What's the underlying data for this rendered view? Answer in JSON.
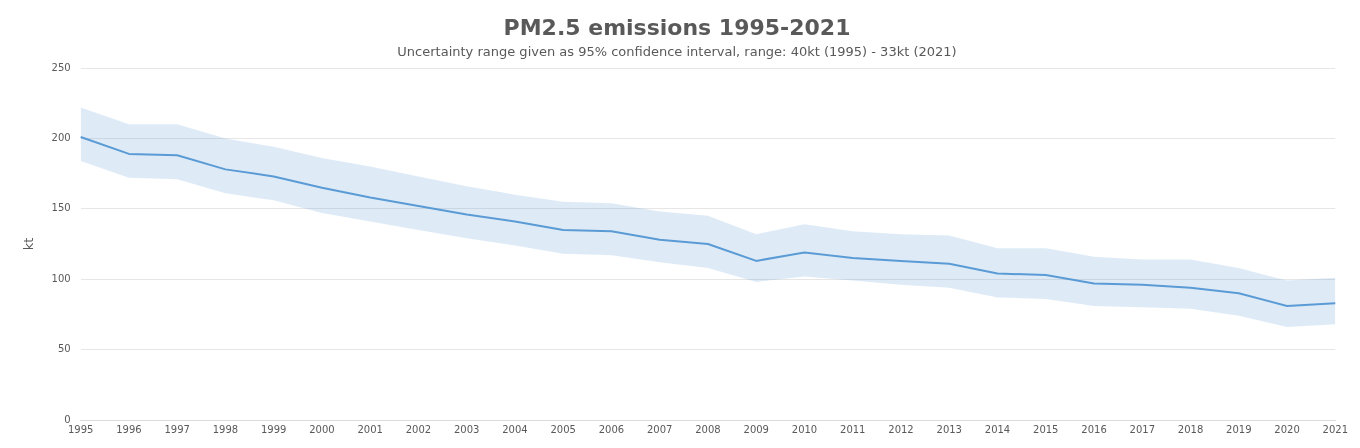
{
  "chart_data": {
    "type": "line",
    "title": "PM2.5 emissions 1995-2021",
    "subtitle": "Uncertainty range given as 95% confidence interval, range: 40kt (1995) - 33kt (2021)",
    "ylabel": "kt",
    "categories": [
      "1995",
      "1996",
      "1997",
      "1998",
      "1999",
      "2000",
      "2001",
      "2002",
      "2003",
      "2004",
      "2005",
      "2006",
      "2007",
      "2008",
      "2009",
      "2010",
      "2011",
      "2012",
      "2013",
      "2014",
      "2015",
      "2016",
      "2017",
      "2018",
      "2019",
      "2020",
      "2021"
    ],
    "series": [
      {
        "color": "#5b9bd5",
        "values": [
          201,
          189,
          188,
          178,
          173,
          165,
          158,
          152,
          146,
          141,
          135,
          134,
          128,
          125,
          113,
          119,
          115,
          113,
          111,
          104,
          103,
          97,
          96,
          94,
          90,
          81,
          83
        ],
        "upper": [
          222,
          210,
          210,
          200,
          194,
          186,
          180,
          173,
          166,
          160,
          155,
          154,
          148,
          145,
          132,
          139,
          134,
          132,
          131,
          122,
          122,
          116,
          114,
          114,
          108,
          99,
          101
        ],
        "lower": [
          184,
          172,
          171,
          161,
          156,
          147,
          141,
          135,
          129,
          124,
          118,
          117,
          112,
          108,
          98,
          102,
          99,
          96,
          94,
          87,
          86,
          81,
          80,
          79,
          74,
          66,
          68
        ]
      }
    ],
    "ylim": [
      0,
      250
    ],
    "yticks": [
      0,
      50,
      100,
      150,
      200,
      250
    ],
    "grid": "y",
    "legend": false,
    "marker": "none",
    "line_style": "solid"
  }
}
